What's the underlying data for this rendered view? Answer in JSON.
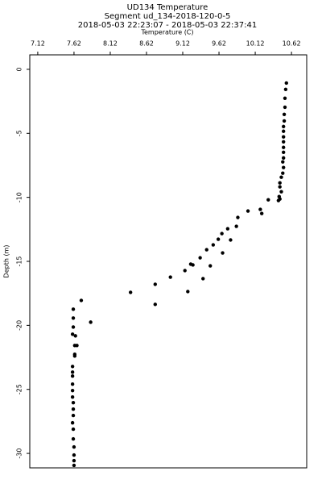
{
  "chart_data": {
    "type": "scatter",
    "title": "UD134 Temperature",
    "subtitle": "Segment ud_134-2018-120-0-5",
    "time_range": "2018-05-03 22:23:07 - 2018-05-03 22:37:41",
    "x_label": "Temperature (C)",
    "y_label": "Depth (m)",
    "color": "#000000",
    "xlim": [
      7.01,
      10.83
    ],
    "xticks": [
      7.12,
      7.62,
      8.12,
      8.62,
      9.12,
      9.62,
      10.12,
      10.62
    ],
    "ylim": [
      -31.13,
      1.13
    ],
    "yticks": [
      0,
      -5,
      -10,
      -15,
      -20,
      -25,
      -30
    ],
    "x": [
      10.55,
      10.54,
      10.53,
      10.53,
      10.52,
      10.52,
      10.51,
      10.51,
      10.51,
      10.51,
      10.51,
      10.51,
      10.51,
      10.5,
      10.51,
      10.5,
      10.48,
      10.46,
      10.46,
      10.48,
      10.45,
      10.44,
      10.3,
      10.19,
      10.46,
      10.21,
      10.02,
      9.88,
      9.86,
      9.74,
      9.66,
      9.61,
      9.54,
      9.78,
      9.45,
      9.36,
      9.67,
      9.26,
      9.5,
      9.23,
      9.15,
      8.95,
      9.4,
      8.74,
      8.4,
      9.19,
      8.74,
      7.72,
      7.85,
      7.61,
      7.61,
      7.61,
      7.6,
      7.64,
      7.63,
      7.66,
      7.63,
      7.63,
      7.6,
      7.6,
      7.6,
      7.6,
      7.6,
      7.6,
      7.61,
      7.61,
      7.61,
      7.6,
      7.61,
      7.61,
      7.62,
      7.62,
      7.62,
      7.62
    ],
    "values": [
      -1.07,
      -1.57,
      -2.26,
      -2.96,
      -3.52,
      -4.03,
      -4.47,
      -4.84,
      -5.28,
      -5.66,
      -6.1,
      -6.48,
      -6.92,
      -7.23,
      -7.67,
      -8.11,
      -8.43,
      -8.87,
      -9.18,
      -9.56,
      -9.94,
      -10.25,
      -10.19,
      -10.94,
      -10.13,
      -11.26,
      -11.07,
      -11.57,
      -12.26,
      -12.45,
      -12.83,
      -13.27,
      -13.71,
      -13.33,
      -14.09,
      -14.72,
      -14.34,
      -15.28,
      -15.35,
      -15.22,
      -15.72,
      -16.23,
      -16.35,
      -16.79,
      -17.42,
      -17.36,
      -18.36,
      -18.05,
      -19.75,
      -18.74,
      -19.43,
      -20.13,
      -20.69,
      -20.82,
      -21.57,
      -21.57,
      -22.26,
      -22.39,
      -23.21,
      -23.65,
      -23.96,
      -24.59,
      -25.09,
      -25.6,
      -26.04,
      -26.54,
      -27.04,
      -27.61,
      -28.11,
      -28.87,
      -29.5,
      -30.13,
      -30.57,
      -30.94
    ]
  }
}
